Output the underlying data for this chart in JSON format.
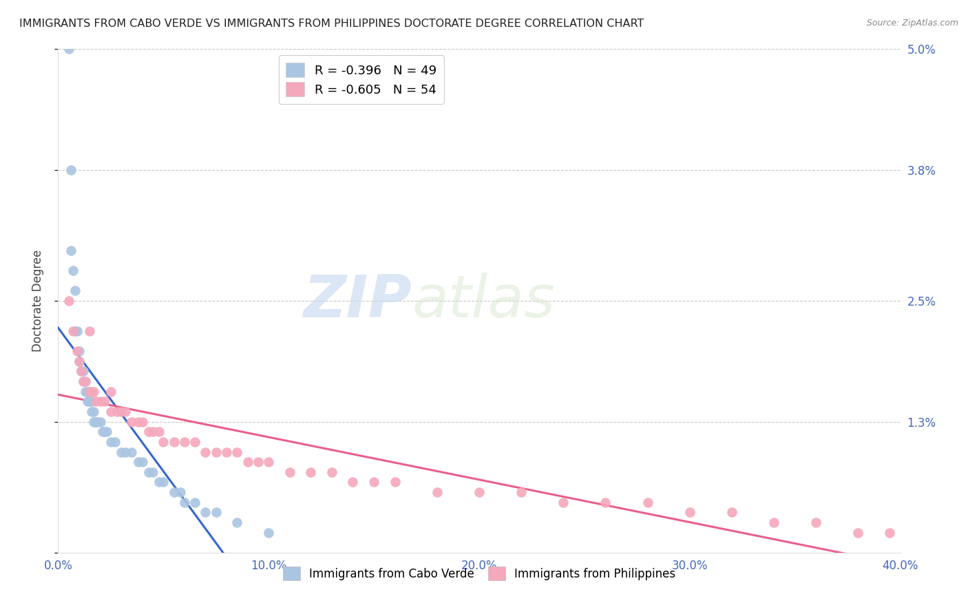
{
  "title": "IMMIGRANTS FROM CABO VERDE VS IMMIGRANTS FROM PHILIPPINES DOCTORATE DEGREE CORRELATION CHART",
  "source": "Source: ZipAtlas.com",
  "ylabel": "Doctorate Degree",
  "xlim": [
    0.0,
    0.4
  ],
  "ylim": [
    0.0,
    0.05
  ],
  "yticks": [
    0.0,
    0.013,
    0.025,
    0.038,
    0.05
  ],
  "ytick_labels": [
    "",
    "1.3%",
    "2.5%",
    "3.8%",
    "5.0%"
  ],
  "xticks": [
    0.0,
    0.1,
    0.2,
    0.3,
    0.4
  ],
  "xtick_labels": [
    "0.0%",
    "10.0%",
    "20.0%",
    "30.0%",
    "40.0%"
  ],
  "legend_label1": "R = -0.396   N = 49",
  "legend_label2": "R = -0.605   N = 54",
  "bottom_label1": "Immigrants from Cabo Verde",
  "bottom_label2": "Immigrants from Philippines",
  "cabo_verde_color": "#aac5e2",
  "philippines_color": "#f5a8bc",
  "cabo_verde_line_color": "#3366cc",
  "philippines_line_color": "#e8608a",
  "cabo_verde_x": [
    0.005,
    0.006,
    0.006,
    0.007,
    0.008,
    0.008,
    0.009,
    0.01,
    0.01,
    0.011,
    0.011,
    0.012,
    0.012,
    0.013,
    0.013,
    0.014,
    0.014,
    0.015,
    0.015,
    0.016,
    0.016,
    0.017,
    0.017,
    0.018,
    0.018,
    0.019,
    0.02,
    0.021,
    0.022,
    0.023,
    0.025,
    0.027,
    0.03,
    0.032,
    0.035,
    0.038,
    0.04,
    0.043,
    0.045,
    0.048,
    0.05,
    0.055,
    0.058,
    0.06,
    0.065,
    0.07,
    0.075,
    0.085,
    0.1
  ],
  "cabo_verde_y": [
    0.05,
    0.038,
    0.03,
    0.028,
    0.026,
    0.022,
    0.022,
    0.02,
    0.019,
    0.018,
    0.018,
    0.018,
    0.017,
    0.017,
    0.016,
    0.016,
    0.015,
    0.015,
    0.015,
    0.015,
    0.014,
    0.014,
    0.013,
    0.013,
    0.013,
    0.013,
    0.013,
    0.012,
    0.012,
    0.012,
    0.011,
    0.011,
    0.01,
    0.01,
    0.01,
    0.009,
    0.009,
    0.008,
    0.008,
    0.007,
    0.007,
    0.006,
    0.006,
    0.005,
    0.005,
    0.004,
    0.004,
    0.003,
    0.002
  ],
  "philippines_x": [
    0.005,
    0.007,
    0.009,
    0.01,
    0.011,
    0.012,
    0.013,
    0.015,
    0.015,
    0.016,
    0.017,
    0.018,
    0.02,
    0.022,
    0.025,
    0.025,
    0.028,
    0.03,
    0.032,
    0.035,
    0.038,
    0.04,
    0.043,
    0.045,
    0.048,
    0.05,
    0.055,
    0.06,
    0.065,
    0.07,
    0.075,
    0.08,
    0.085,
    0.09,
    0.095,
    0.1,
    0.11,
    0.12,
    0.13,
    0.14,
    0.15,
    0.16,
    0.18,
    0.2,
    0.22,
    0.24,
    0.26,
    0.28,
    0.3,
    0.32,
    0.34,
    0.36,
    0.38,
    0.395
  ],
  "philippines_y": [
    0.025,
    0.022,
    0.02,
    0.019,
    0.018,
    0.017,
    0.017,
    0.016,
    0.022,
    0.016,
    0.016,
    0.015,
    0.015,
    0.015,
    0.016,
    0.014,
    0.014,
    0.014,
    0.014,
    0.013,
    0.013,
    0.013,
    0.012,
    0.012,
    0.012,
    0.011,
    0.011,
    0.011,
    0.011,
    0.01,
    0.01,
    0.01,
    0.01,
    0.009,
    0.009,
    0.009,
    0.008,
    0.008,
    0.008,
    0.007,
    0.007,
    0.007,
    0.006,
    0.006,
    0.006,
    0.005,
    0.005,
    0.005,
    0.004,
    0.004,
    0.003,
    0.003,
    0.002,
    0.002
  ],
  "watermark_zip": "ZIP",
  "watermark_atlas": "atlas",
  "background_color": "#ffffff",
  "grid_color": "#c8c8c8",
  "title_color": "#222222",
  "axis_label_color": "#444444",
  "tick_color": "#4466bb",
  "source_color": "#888888"
}
